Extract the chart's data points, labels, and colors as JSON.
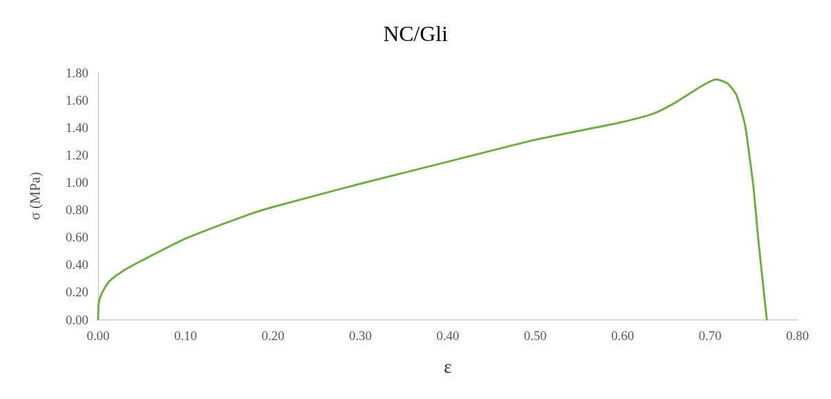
{
  "chart_data": {
    "type": "line",
    "title": "NC/Gli",
    "xlabel": "ε",
    "ylabel": "σ (MPa)",
    "x": [
      0,
      0.001,
      0.005,
      0.013,
      0.03,
      0.05,
      0.1,
      0.17,
      0.2,
      0.3,
      0.4,
      0.5,
      0.6,
      0.635,
      0.66,
      0.69,
      0.707,
      0.72,
      0.73,
      0.74,
      0.745,
      0.75,
      0.755,
      0.76,
      0.765
    ],
    "series": [
      {
        "color": "#70ad47",
        "values": [
          0,
          0.13,
          0.2,
          0.28,
          0.36,
          0.43,
          0.59,
          0.76,
          0.82,
          0.99,
          1.15,
          1.31,
          1.44,
          1.5,
          1.58,
          1.7,
          1.75,
          1.72,
          1.64,
          1.42,
          1.2,
          0.95,
          0.6,
          0.3,
          0
        ]
      }
    ],
    "xlim": [
      0,
      0.8
    ],
    "xticks": [
      {
        "value": 0,
        "label": "0.00"
      },
      {
        "value": 0.1,
        "label": "0.10"
      },
      {
        "value": 0.2,
        "label": "0.20"
      },
      {
        "value": 0.3,
        "label": "0.30"
      },
      {
        "value": 0.4,
        "label": "0.40"
      },
      {
        "value": 0.5,
        "label": "0.50"
      },
      {
        "value": 0.6,
        "label": "0.60"
      },
      {
        "value": 0.7,
        "label": "0.70"
      },
      {
        "value": 0.8,
        "label": "0.80"
      }
    ],
    "ylim": [
      0,
      1.8
    ],
    "yticks": [
      {
        "value": 0,
        "label": "0.00"
      },
      {
        "value": 0.2,
        "label": "0.20"
      },
      {
        "value": 0.4,
        "label": "0.40"
      },
      {
        "value": 0.6,
        "label": "0.60"
      },
      {
        "value": 0.8,
        "label": "0.80"
      },
      {
        "value": 1,
        "label": "1.00"
      },
      {
        "value": 1.2,
        "label": "1.20"
      },
      {
        "value": 1.4,
        "label": "1.40"
      },
      {
        "value": 1.6,
        "label": "1.60"
      },
      {
        "value": 1.8,
        "label": "1.80"
      }
    ],
    "grid": false,
    "marker": "none",
    "line_style": "solid"
  }
}
